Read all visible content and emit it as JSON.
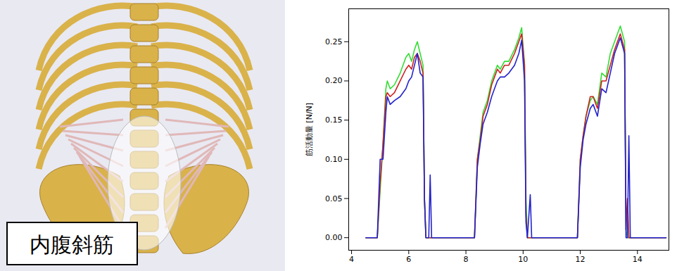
{
  "panel_label": "内腹斜筋",
  "chart_data": {
    "type": "line",
    "ylabel": "筋活動量 [N/N]",
    "xlim": [
      3.9,
      15.1
    ],
    "ylim": [
      -0.016,
      0.292
    ],
    "xticks": [
      4,
      6,
      8,
      10,
      12,
      14
    ],
    "yticks": [
      {
        "value": 0,
        "label": "0.00"
      },
      {
        "value": 0.05,
        "label": "0.05"
      },
      {
        "value": 0.1,
        "label": "0.10"
      },
      {
        "value": 0.15,
        "label": "0.15"
      },
      {
        "value": 0.2,
        "label": "0.20"
      },
      {
        "value": 0.25,
        "label": "0.25"
      }
    ],
    "grid": false,
    "x": [
      4.5,
      4.9,
      5.0,
      5.1,
      5.2,
      5.25,
      5.35,
      5.5,
      5.7,
      5.9,
      6.0,
      6.1,
      6.2,
      6.3,
      6.4,
      6.5,
      6.55,
      6.6,
      6.7,
      6.75,
      6.8,
      8.3,
      8.4,
      8.5,
      8.6,
      8.75,
      8.9,
      9.0,
      9.1,
      9.2,
      9.35,
      9.5,
      9.7,
      9.85,
      9.95,
      10.05,
      10.1,
      10.15,
      10.25,
      10.3,
      11.9,
      12.0,
      12.1,
      12.2,
      12.35,
      12.45,
      12.6,
      12.75,
      12.9,
      13.05,
      13.2,
      13.4,
      13.55,
      13.6,
      13.65,
      13.7,
      13.75,
      15.0
    ],
    "series": [
      {
        "color": "#33dd33",
        "values": [
          0,
          0,
          0.06,
          0.12,
          0.19,
          0.2,
          0.19,
          0.195,
          0.21,
          0.23,
          0.235,
          0.225,
          0.24,
          0.25,
          0.235,
          0.22,
          0.05,
          0,
          0,
          0,
          0,
          0,
          0.1,
          0.13,
          0.16,
          0.175,
          0.2,
          0.21,
          0.22,
          0.215,
          0.225,
          0.225,
          0.24,
          0.255,
          0.268,
          0.22,
          0.05,
          0,
          0,
          0,
          0,
          0.1,
          0.13,
          0.155,
          0.175,
          0.18,
          0.17,
          0.21,
          0.205,
          0.235,
          0.25,
          0.27,
          0.25,
          0.01,
          0,
          0,
          0,
          0
        ]
      },
      {
        "color": "#cc2222",
        "values": [
          0,
          0,
          0.07,
          0.12,
          0.18,
          0.185,
          0.18,
          0.185,
          0.2,
          0.215,
          0.22,
          0.215,
          0.23,
          0.235,
          0.225,
          0.21,
          0.05,
          0,
          0,
          0,
          0,
          0,
          0.1,
          0.125,
          0.155,
          0.17,
          0.195,
          0.205,
          0.215,
          0.21,
          0.22,
          0.22,
          0.235,
          0.25,
          0.26,
          0.22,
          0.03,
          0,
          0,
          0,
          0,
          0.1,
          0.13,
          0.155,
          0.18,
          0.18,
          0.165,
          0.2,
          0.2,
          0.22,
          0.24,
          0.26,
          0.24,
          0.01,
          0.05,
          0,
          0,
          0
        ]
      },
      {
        "color": "#2222cc",
        "values": [
          0,
          0,
          0.1,
          0.1,
          0.16,
          0.18,
          0.17,
          0.175,
          0.18,
          0.19,
          0.2,
          0.205,
          0.22,
          0.235,
          0.21,
          0.205,
          0.05,
          0,
          0,
          0.08,
          0,
          0,
          0.09,
          0.12,
          0.145,
          0.16,
          0.18,
          0.19,
          0.2,
          0.205,
          0.205,
          0.21,
          0.22,
          0.235,
          0.252,
          0.2,
          0.02,
          0,
          0.055,
          0,
          0,
          0.09,
          0.125,
          0.145,
          0.165,
          0.17,
          0.155,
          0.19,
          0.185,
          0.21,
          0.235,
          0.255,
          0.235,
          0,
          0,
          0.13,
          0,
          0
        ]
      }
    ]
  }
}
